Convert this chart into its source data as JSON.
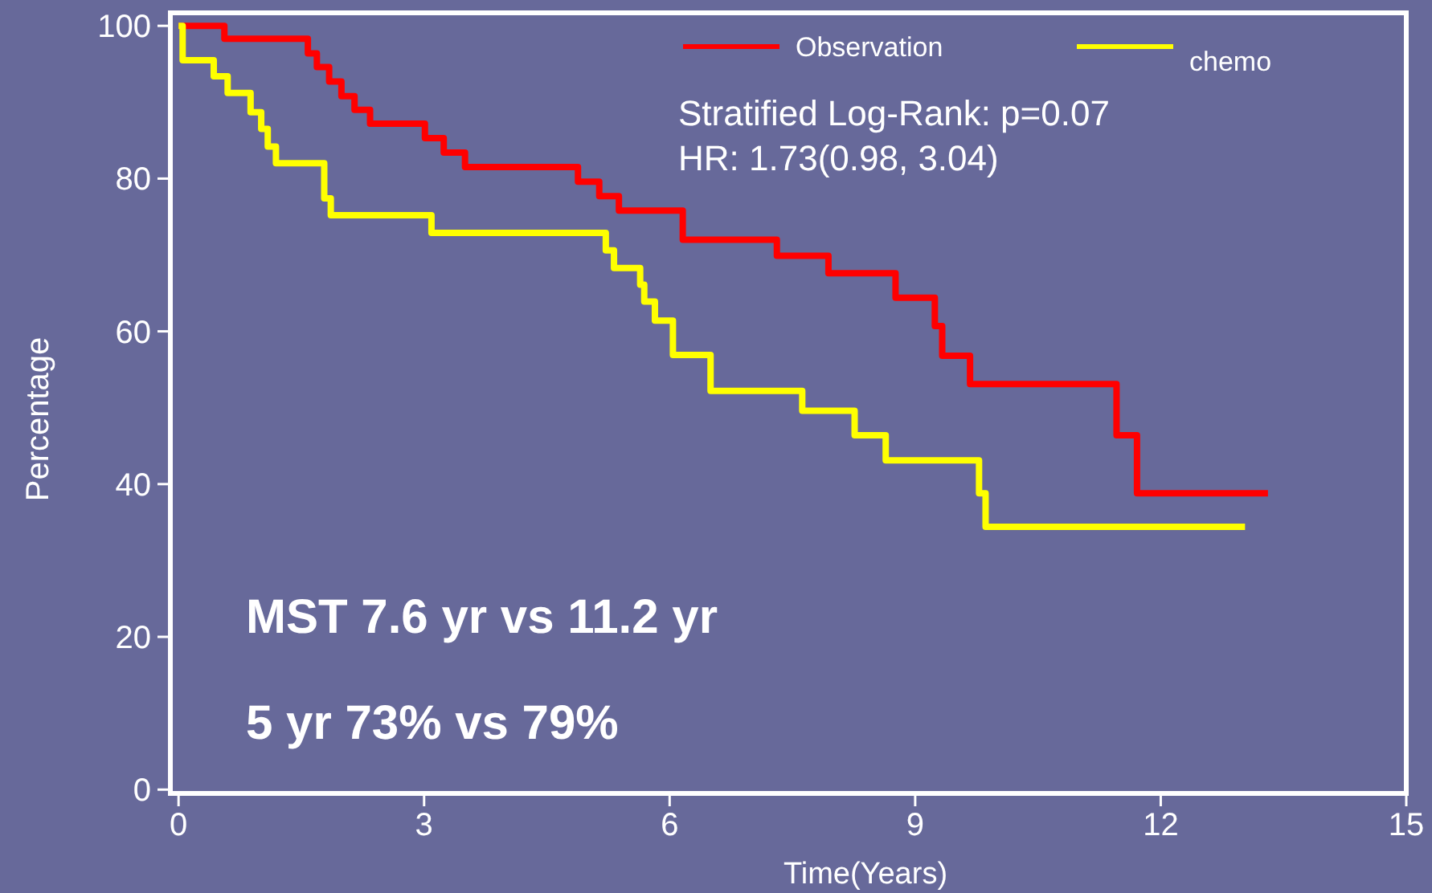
{
  "chart_data": {
    "type": "step",
    "xlabel": "Time(Years)",
    "ylabel": "Percentage",
    "xlim": [
      -0.1,
      15
    ],
    "ylim": [
      -0.5,
      101.7
    ],
    "xticks": [
      0,
      3,
      6,
      9,
      12,
      15
    ],
    "yticks": [
      0,
      20,
      40,
      60,
      80,
      100
    ],
    "grid": false,
    "legend": "top right",
    "marker": "none",
    "line_style": "solid",
    "series": [
      {
        "name": "Observation",
        "color": "#ff0000",
        "x": [
          0,
          0.56,
          1.58,
          1.69,
          1.84,
          1.99,
          2.15,
          2.34,
          3.01,
          3.24,
          3.5,
          4.88,
          5.14,
          5.38,
          6.16,
          7.31,
          7.94,
          8.76,
          9.24,
          9.33,
          9.67,
          11.46,
          11.71,
          13.31
        ],
        "values": [
          100,
          98.3,
          96.4,
          94.6,
          92.7,
          90.8,
          89,
          87.2,
          85.3,
          83.4,
          81.5,
          79.6,
          77.7,
          75.8,
          72,
          69.9,
          67.6,
          64.4,
          60.7,
          56.8,
          53.1,
          46.4,
          38.8,
          38.8
        ]
      },
      {
        "name": "chemo",
        "color": "#ffff00",
        "x": [
          0,
          0.05,
          0.43,
          0.6,
          0.88,
          1.01,
          1.09,
          1.19,
          1.78,
          1.86,
          3.09,
          5.22,
          5.32,
          5.64,
          5.69,
          5.82,
          6.04,
          6.5,
          7.62,
          8.26,
          8.64,
          9.78,
          9.86,
          13.03
        ],
        "values": [
          100,
          95.5,
          93.4,
          91.2,
          88.7,
          86.5,
          84.2,
          82,
          77.4,
          75.2,
          72.9,
          70.6,
          68.3,
          66.1,
          63.9,
          61.4,
          56.9,
          52.2,
          49.6,
          46.4,
          43.1,
          38.8,
          34.4,
          34.4
        ]
      }
    ],
    "annotations": [
      "Stratified Log-Rank: p=0.07",
      "HR: 1.73(0.98, 3.04)",
      "MST 7.6 yr vs 11.2 yr",
      "5 yr 73% vs 79%"
    ]
  }
}
